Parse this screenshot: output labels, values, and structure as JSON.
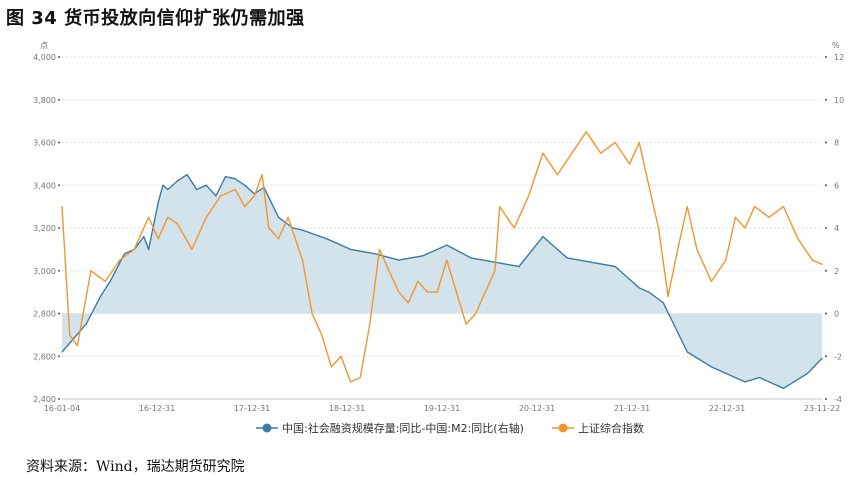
{
  "title": "图 34 货币投放向信仰扩张仍需加强",
  "source": "资料来源：Wind，瑞达期货研究院",
  "chart_data": {
    "type": "line",
    "left_axis": {
      "unit": "点",
      "ylim": [
        2400,
        4000
      ],
      "ticks": [
        "2,400",
        "2,600",
        "2,800",
        "3,000",
        "3,200",
        "3,400",
        "3,600",
        "3,800",
        "4,000"
      ]
    },
    "right_axis": {
      "unit": "%",
      "ylim": [
        -4,
        12
      ],
      "ticks": [
        "-4",
        "-2",
        "0",
        "2",
        "4",
        "6",
        "8",
        "10",
        "12"
      ]
    },
    "x_ticks": [
      "16-01-04",
      "16-12-31",
      "17-12-31",
      "18-12-31",
      "19-12-31",
      "20-12-31",
      "21-12-31",
      "22-12-31",
      "23-11-22"
    ],
    "grid": true,
    "legend_position": "bottom",
    "series": [
      {
        "name": "中国:社会融资规模存量:同比-中国:M2:同比(右轴)",
        "axis": "right",
        "color": "#3a7ca5",
        "fill": "#d3e3ec",
        "x": [
          2016.0,
          2016.25,
          2016.4,
          2016.5,
          2016.65,
          2016.75,
          2016.85,
          2016.9,
          2017.0,
          2017.05,
          2017.1,
          2017.2,
          2017.3,
          2017.4,
          2017.5,
          2017.6,
          2017.7,
          2017.8,
          2017.9,
          2018.0,
          2018.1,
          2018.25,
          2018.4,
          2018.5,
          2018.75,
          2019.0,
          2019.25,
          2019.5,
          2019.75,
          2020.0,
          2020.25,
          2020.5,
          2020.75,
          2021.0,
          2021.1,
          2021.25,
          2021.5,
          2021.75,
          2022.0,
          2022.1,
          2022.25,
          2022.5,
          2022.75,
          2023.0,
          2023.1,
          2023.25,
          2023.5,
          2023.75,
          2023.9
        ],
        "y": [
          -1.8,
          -0.5,
          0.8,
          1.5,
          2.8,
          3.0,
          3.6,
          3.0,
          5.2,
          6.0,
          5.8,
          6.2,
          6.5,
          5.8,
          6.0,
          5.5,
          6.4,
          6.3,
          6.0,
          5.6,
          5.9,
          4.5,
          4.0,
          3.9,
          3.5,
          3.0,
          2.8,
          2.5,
          2.7,
          3.2,
          2.6,
          2.4,
          2.2,
          3.6,
          3.2,
          2.6,
          2.4,
          2.2,
          1.2,
          1.0,
          0.5,
          -1.8,
          -2.5,
          -3.0,
          -3.2,
          -3.0,
          -3.5,
          -2.8,
          -2.1
        ]
      },
      {
        "name": "上证综合指数",
        "axis": "left",
        "color": "#f0962e",
        "x": [
          2016.0,
          2016.08,
          2016.16,
          2016.3,
          2016.45,
          2016.6,
          2016.75,
          2016.9,
          2017.0,
          2017.1,
          2017.2,
          2017.35,
          2017.5,
          2017.65,
          2017.8,
          2017.9,
          2018.0,
          2018.08,
          2018.15,
          2018.25,
          2018.35,
          2018.5,
          2018.6,
          2018.7,
          2018.8,
          2018.9,
          2019.0,
          2019.1,
          2019.2,
          2019.3,
          2019.4,
          2019.5,
          2019.6,
          2019.7,
          2019.8,
          2019.9,
          2020.0,
          2020.1,
          2020.2,
          2020.3,
          2020.4,
          2020.5,
          2020.55,
          2020.7,
          2020.85,
          2021.0,
          2021.15,
          2021.3,
          2021.45,
          2021.6,
          2021.75,
          2021.9,
          2022.0,
          2022.1,
          2022.2,
          2022.3,
          2022.4,
          2022.5,
          2022.6,
          2022.75,
          2022.9,
          2023.0,
          2023.1,
          2023.2,
          2023.35,
          2023.5,
          2023.65,
          2023.8,
          2023.9
        ],
        "y": [
          3300,
          2700,
          2650,
          3000,
          2950,
          3050,
          3100,
          3250,
          3150,
          3250,
          3220,
          3100,
          3250,
          3350,
          3380,
          3300,
          3350,
          3450,
          3200,
          3150,
          3250,
          3050,
          2800,
          2700,
          2550,
          2600,
          2480,
          2500,
          2750,
          3100,
          3000,
          2900,
          2850,
          2950,
          2900,
          2900,
          3050,
          2900,
          2750,
          2800,
          2900,
          3000,
          3300,
          3200,
          3350,
          3550,
          3450,
          3550,
          3650,
          3550,
          3600,
          3500,
          3600,
          3400,
          3200,
          2880,
          3100,
          3300,
          3100,
          2950,
          3050,
          3250,
          3200,
          3300,
          3250,
          3300,
          3150,
          3050,
          3030
        ]
      }
    ]
  }
}
